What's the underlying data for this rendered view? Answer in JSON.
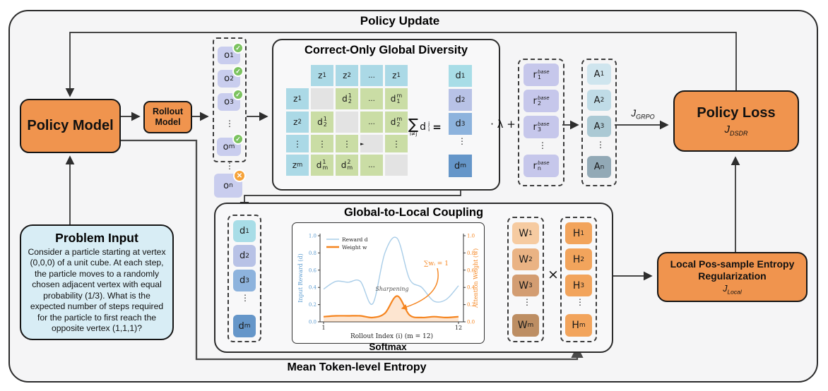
{
  "colors": {
    "accent_orange": "#f0944e",
    "panel_bg": "#f5f5f6",
    "problem_blue": "#d8edf5",
    "matrix_blue": "#abd9e6",
    "matrix_green": "#cadda5",
    "matrix_gray": "#e3e3e3",
    "lavender": "#c9cdee",
    "plot_blue": "#a9cde8",
    "plot_orange": "#f5841e",
    "check_green": "#7cc360",
    "cross_orange": "#f6a33a"
  },
  "top_label": "Policy Update",
  "bottom_label": "Mean Token-level Entropy",
  "policy_model": {
    "label": "Policy Model"
  },
  "rollout_model": {
    "line1": "Rollout",
    "line2": "Model"
  },
  "rollouts": {
    "o1": {
      "b": "o",
      "s": "1"
    },
    "o2": {
      "b": "o",
      "s": "2"
    },
    "o3": {
      "b": "o",
      "s": "3"
    },
    "dots": "⋮",
    "om": {
      "b": "o",
      "s": "m"
    },
    "outer_dots": "⋮",
    "on": {
      "b": "o",
      "s": "n"
    },
    "check": "✓",
    "cross": "✕"
  },
  "diversity": {
    "title": "Correct-Only Global Diversity",
    "matrix": {
      "h1": {
        "b": "z",
        "s": "1"
      },
      "h2": {
        "b": "z",
        "s": "2"
      },
      "h3": "...",
      "h4": {
        "b": "z",
        "s": "1"
      },
      "r1": {
        "b": "z",
        "s": "1"
      },
      "r2": {
        "b": "z",
        "s": "2"
      },
      "r3": "⋮",
      "r4": {
        "b": "z",
        "s": "m"
      },
      "c12": {
        "b": "d",
        "sub": "2",
        "sup": "1"
      },
      "c13": "...",
      "c14": {
        "b": "d",
        "sub": "1",
        "sup": "m"
      },
      "c21": {
        "b": "d",
        "sub": "2",
        "sup": "1"
      },
      "c23": "...",
      "c24": {
        "b": "d",
        "sub": "2",
        "sup": "m"
      },
      "c31": "⋮",
      "c32": "⋮",
      "c34": "⋮",
      "diag_marker": "►",
      "c41": {
        "b": "d",
        "sub": "m",
        "sup": "1"
      },
      "c42": {
        "b": "d",
        "sub": "m",
        "sup": "2"
      },
      "c43": "..."
    },
    "sum": {
      "sigma": "∑",
      "cond": "i≠j",
      "base": "d",
      "sub": "i",
      "sup": "j",
      "eq": "="
    },
    "dcol": {
      "d1": {
        "b": "d",
        "s": "1"
      },
      "d2": {
        "b": "d",
        "s": "2"
      },
      "d3": {
        "b": "d",
        "s": "3"
      },
      "dots": "⋮",
      "dm": {
        "b": "d",
        "s": "m"
      }
    }
  },
  "scale_op": "· λ +",
  "rewards": {
    "r1": {
      "b": "r",
      "s": "1",
      "sup": "base"
    },
    "r2": {
      "b": "r",
      "s": "2",
      "sup": "base"
    },
    "r3": {
      "b": "r",
      "s": "3",
      "sup": "base"
    },
    "dots": "⋮",
    "rn": {
      "b": "r",
      "s": "n",
      "sup": "base"
    }
  },
  "advantages": {
    "a1": {
      "b": "A",
      "s": "1"
    },
    "a2": {
      "b": "A",
      "s": "2"
    },
    "a3": {
      "b": "A",
      "s": "3"
    },
    "dots": "⋮",
    "an": {
      "b": "A",
      "s": "n"
    }
  },
  "j_grpo": {
    "j": "J",
    "sub": "GRPO"
  },
  "policy_loss": {
    "title": "Policy Loss",
    "j": "J",
    "sub": "DSDR"
  },
  "problem_input": {
    "title": "Problem Input",
    "body": "Consider a particle starting at vertex (0,0,0) of a unit cube. At each step, the particle moves to a randomly chosen adjacent vertex with equal probability (1/3). What is the expected number of steps required for the particle to first reach the opposite vertex (1,1,1)?"
  },
  "coupling": {
    "title": "Global-to-Local Coupling",
    "softmax": "Softmax",
    "times": "×",
    "dcol": {
      "d1": {
        "b": "d",
        "s": "1"
      },
      "d2": {
        "b": "d",
        "s": "2"
      },
      "d3": {
        "b": "d",
        "s": "3"
      },
      "dots": "⋮",
      "dm": {
        "b": "d",
        "s": "m"
      }
    }
  },
  "weights": {
    "w1": {
      "b": "W",
      "s": "1"
    },
    "w2": {
      "b": "W",
      "s": "2"
    },
    "w3": {
      "b": "W",
      "s": "3"
    },
    "dots": "⋮",
    "wm": {
      "b": "W",
      "s": "m"
    }
  },
  "entropies": {
    "h1": {
      "b": "H",
      "s": "1"
    },
    "h2": {
      "b": "H",
      "s": "2"
    },
    "h3": {
      "b": "H",
      "s": "3"
    },
    "dots": "⋮",
    "hm": {
      "b": "H",
      "s": "m"
    }
  },
  "local_reg": {
    "line1": "Local Pos-sample Entropy",
    "line2": "Regularization",
    "j": "J",
    "sub": "Local"
  },
  "chart_data": {
    "type": "line",
    "x": [
      1,
      2,
      3,
      4,
      5,
      6,
      7,
      8,
      9,
      10,
      11,
      12
    ],
    "series": [
      {
        "name": "Reward d",
        "color": "#a9cde8",
        "width": 1.4,
        "values": [
          0.38,
          0.47,
          0.46,
          0.47,
          0.21,
          0.8,
          0.97,
          0.5,
          0.4,
          0.24,
          0.26,
          0.42
        ]
      },
      {
        "name": "Weight w",
        "color": "#f5841e",
        "width": 2.2,
        "fill": "rgba(246,138,40,0.22)",
        "values": [
          0.06,
          0.07,
          0.07,
          0.07,
          0.05,
          0.1,
          0.3,
          0.08,
          0.05,
          0.06,
          0.05,
          0.06
        ]
      }
    ],
    "xlabel": "Rollout Index (i) (m = 12)",
    "ylabel_left": "Input Reward (d)",
    "ylabel_right": "Attention Weight (w)",
    "ylim": [
      0,
      1
    ],
    "yticks": [
      0,
      0.2,
      0.4,
      0.6,
      0.8,
      1.0
    ],
    "xticks": [
      1,
      12
    ],
    "annotations": {
      "sharpening": "Sharpening",
      "sum_weights": "∑wᵢ = 1"
    },
    "legend_position": "upper left"
  }
}
